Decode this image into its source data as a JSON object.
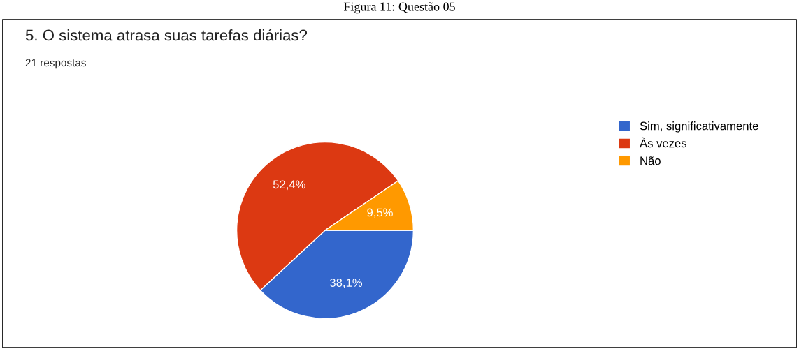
{
  "chart_data": {
    "type": "pie",
    "title": "5. O sistema atrasa suas tarefas diárias?",
    "subtitle": "21 respostas",
    "annotations": [
      "Figura 11: Questão 05"
    ],
    "categories": [
      "Sim, significativamente",
      "Às vezes",
      "Não"
    ],
    "values": [
      38.1,
      52.4,
      9.5
    ],
    "colors": [
      "#3366cc",
      "#dc3912",
      "#ff9900"
    ],
    "value_labels": [
      "38,1%",
      "52,4%",
      "9,5%"
    ],
    "legend": "right"
  }
}
